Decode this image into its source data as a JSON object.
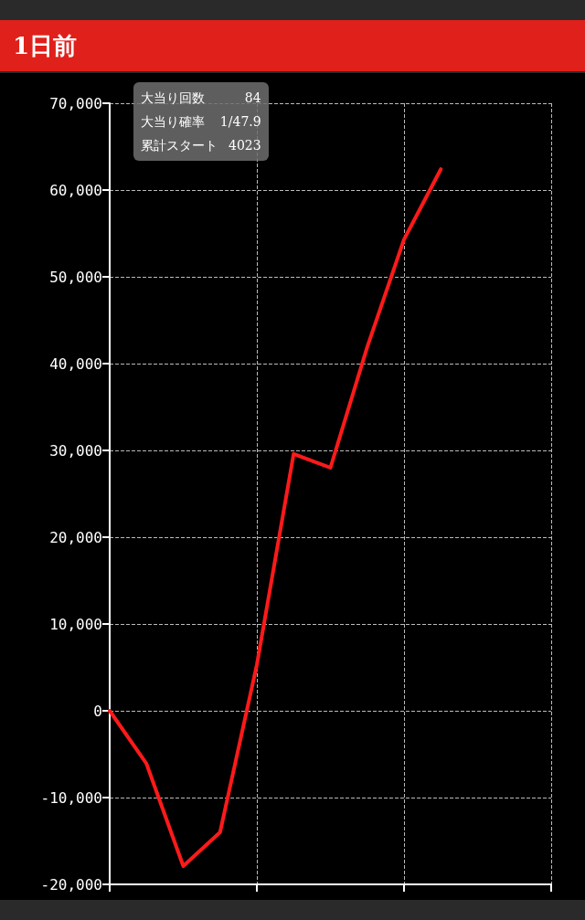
{
  "chart_data": {
    "type": "line",
    "title": "1日前",
    "categories": [
      null,
      null,
      null,
      null,
      null,
      null,
      null,
      null,
      null,
      null,
      null,
      null,
      null
    ],
    "series": [
      {
        "color": "#ff1a1a",
        "values": [
          0,
          -6100,
          -17900,
          -14000,
          5300,
          29600,
          28000,
          41900,
          54300,
          62400,
          null,
          null,
          null
        ]
      }
    ],
    "ylim": [
      -20000,
      70000
    ],
    "yticks": [
      {
        "value": -20000,
        "label": "-20,000"
      },
      {
        "value": -10000,
        "label": "-10,000"
      },
      0,
      {
        "value": 10000,
        "label": "10,000"
      },
      {
        "value": 20000,
        "label": "20,000"
      },
      {
        "value": 30000,
        "label": "30,000"
      },
      {
        "value": 40000,
        "label": "40,000"
      },
      {
        "value": 50000,
        "label": "50,000"
      },
      {
        "value": 60000,
        "label": "60,000"
      },
      {
        "value": 70000,
        "label": "70,000"
      }
    ],
    "grid": true,
    "marker": "none",
    "line_style": "solid",
    "annotations": [
      "大当り回数 84",
      "大当り確率 1/47.9",
      "累計スタート 4023"
    ]
  }
}
